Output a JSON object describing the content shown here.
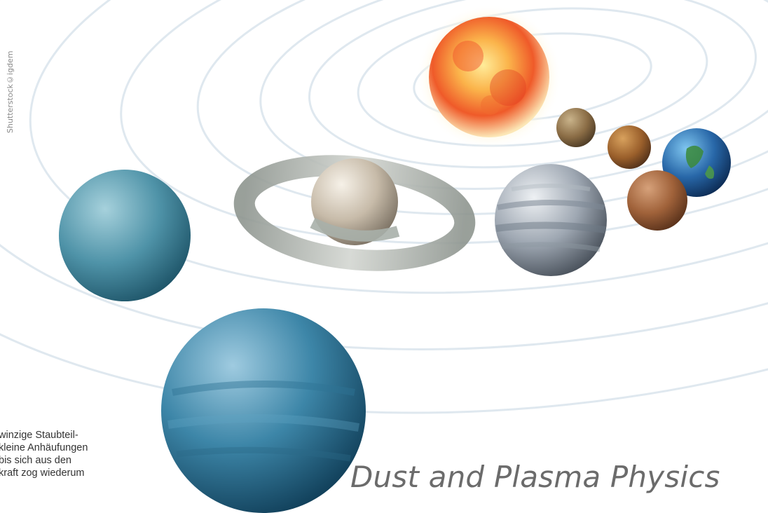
{
  "credit": "Shutterstock©igdem",
  "body_text": {
    "lines": [
      "winzige Staubteil-",
      "kleine Anhäufungen",
      "bis sich aus den",
      "kraft zog wiederum"
    ]
  },
  "headline": "Dust and Plasma Physics",
  "illustration": {
    "subject": "solar system",
    "bodies": [
      "sun",
      "mercury",
      "venus",
      "earth",
      "mars",
      "jupiter",
      "saturn",
      "uranus",
      "neptune"
    ]
  }
}
